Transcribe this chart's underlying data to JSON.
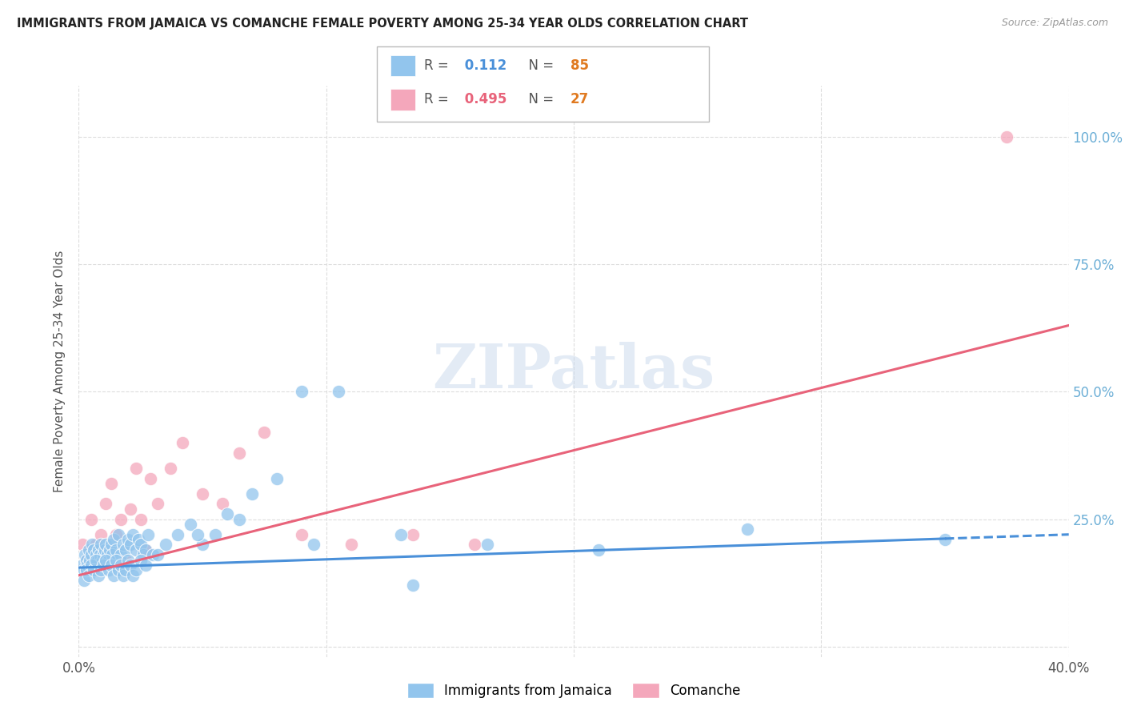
{
  "title": "IMMIGRANTS FROM JAMAICA VS COMANCHE FEMALE POVERTY AMONG 25-34 YEAR OLDS CORRELATION CHART",
  "source": "Source: ZipAtlas.com",
  "ylabel": "Female Poverty Among 25-34 Year Olds",
  "xlim": [
    0.0,
    40.0
  ],
  "ylim": [
    -2.0,
    110.0
  ],
  "blue_color": "#92C5ED",
  "pink_color": "#F4A7BB",
  "blue_line_color": "#4A90D9",
  "pink_line_color": "#E8637A",
  "blue_R": 0.112,
  "blue_N": 85,
  "pink_R": 0.495,
  "pink_N": 27,
  "watermark": "ZIPatlas",
  "background_color": "#ffffff",
  "grid_color": "#dddddd",
  "title_color": "#222222",
  "right_axis_color": "#6BAED6",
  "label_color": "#555555",
  "jamaica_x": [
    0.15,
    0.2,
    0.25,
    0.3,
    0.35,
    0.4,
    0.45,
    0.5,
    0.55,
    0.6,
    0.65,
    0.7,
    0.75,
    0.8,
    0.85,
    0.9,
    0.95,
    1.0,
    1.05,
    1.1,
    1.15,
    1.2,
    1.25,
    1.3,
    1.35,
    1.4,
    1.5,
    1.6,
    1.7,
    1.8,
    1.9,
    2.0,
    2.1,
    2.2,
    2.3,
    2.4,
    2.5,
    2.6,
    2.7,
    2.8,
    0.2,
    0.3,
    0.4,
    0.5,
    0.6,
    0.7,
    0.8,
    0.9,
    1.0,
    1.1,
    1.2,
    1.3,
    1.4,
    1.5,
    1.6,
    1.7,
    1.8,
    1.9,
    2.0,
    2.1,
    2.2,
    2.3,
    2.5,
    2.7,
    3.0,
    3.5,
    4.0,
    4.5,
    5.0,
    5.5,
    6.0,
    7.0,
    8.0,
    9.0,
    10.5,
    13.0,
    16.5,
    21.0,
    27.0,
    35.0,
    3.2,
    4.8,
    6.5,
    9.5,
    13.5
  ],
  "jamaica_y": [
    16,
    15,
    18,
    17,
    16,
    19,
    17,
    18,
    20,
    19,
    16,
    18,
    17,
    19,
    18,
    20,
    17,
    18,
    19,
    20,
    18,
    17,
    19,
    20,
    18,
    21,
    19,
    22,
    18,
    20,
    19,
    21,
    20,
    22,
    19,
    21,
    20,
    18,
    19,
    22,
    13,
    15,
    14,
    16,
    15,
    17,
    14,
    15,
    16,
    17,
    15,
    16,
    14,
    17,
    15,
    16,
    14,
    15,
    17,
    16,
    14,
    15,
    17,
    16,
    18,
    20,
    22,
    24,
    20,
    22,
    26,
    30,
    33,
    50,
    50,
    22,
    20,
    19,
    23,
    21,
    18,
    22,
    25,
    20,
    12
  ],
  "comanche_x": [
    0.15,
    0.3,
    0.5,
    0.7,
    0.9,
    1.1,
    1.3,
    1.5,
    1.7,
    1.9,
    2.1,
    2.3,
    2.5,
    2.7,
    2.9,
    3.2,
    3.7,
    4.2,
    5.0,
    5.8,
    6.5,
    7.5,
    9.0,
    11.0,
    13.5,
    16.0,
    37.5
  ],
  "comanche_y": [
    20,
    17,
    25,
    20,
    22,
    28,
    32,
    22,
    25,
    17,
    27,
    35,
    25,
    19,
    33,
    28,
    35,
    40,
    30,
    28,
    38,
    42,
    22,
    20,
    22,
    20,
    100
  ],
  "blue_trend_x0": 0.0,
  "blue_trend_y0": 15.5,
  "blue_trend_x1": 40.0,
  "blue_trend_y1": 22.0,
  "pink_trend_x0": 0.0,
  "pink_trend_y0": 14.0,
  "pink_trend_x1": 40.0,
  "pink_trend_y1": 63.0
}
